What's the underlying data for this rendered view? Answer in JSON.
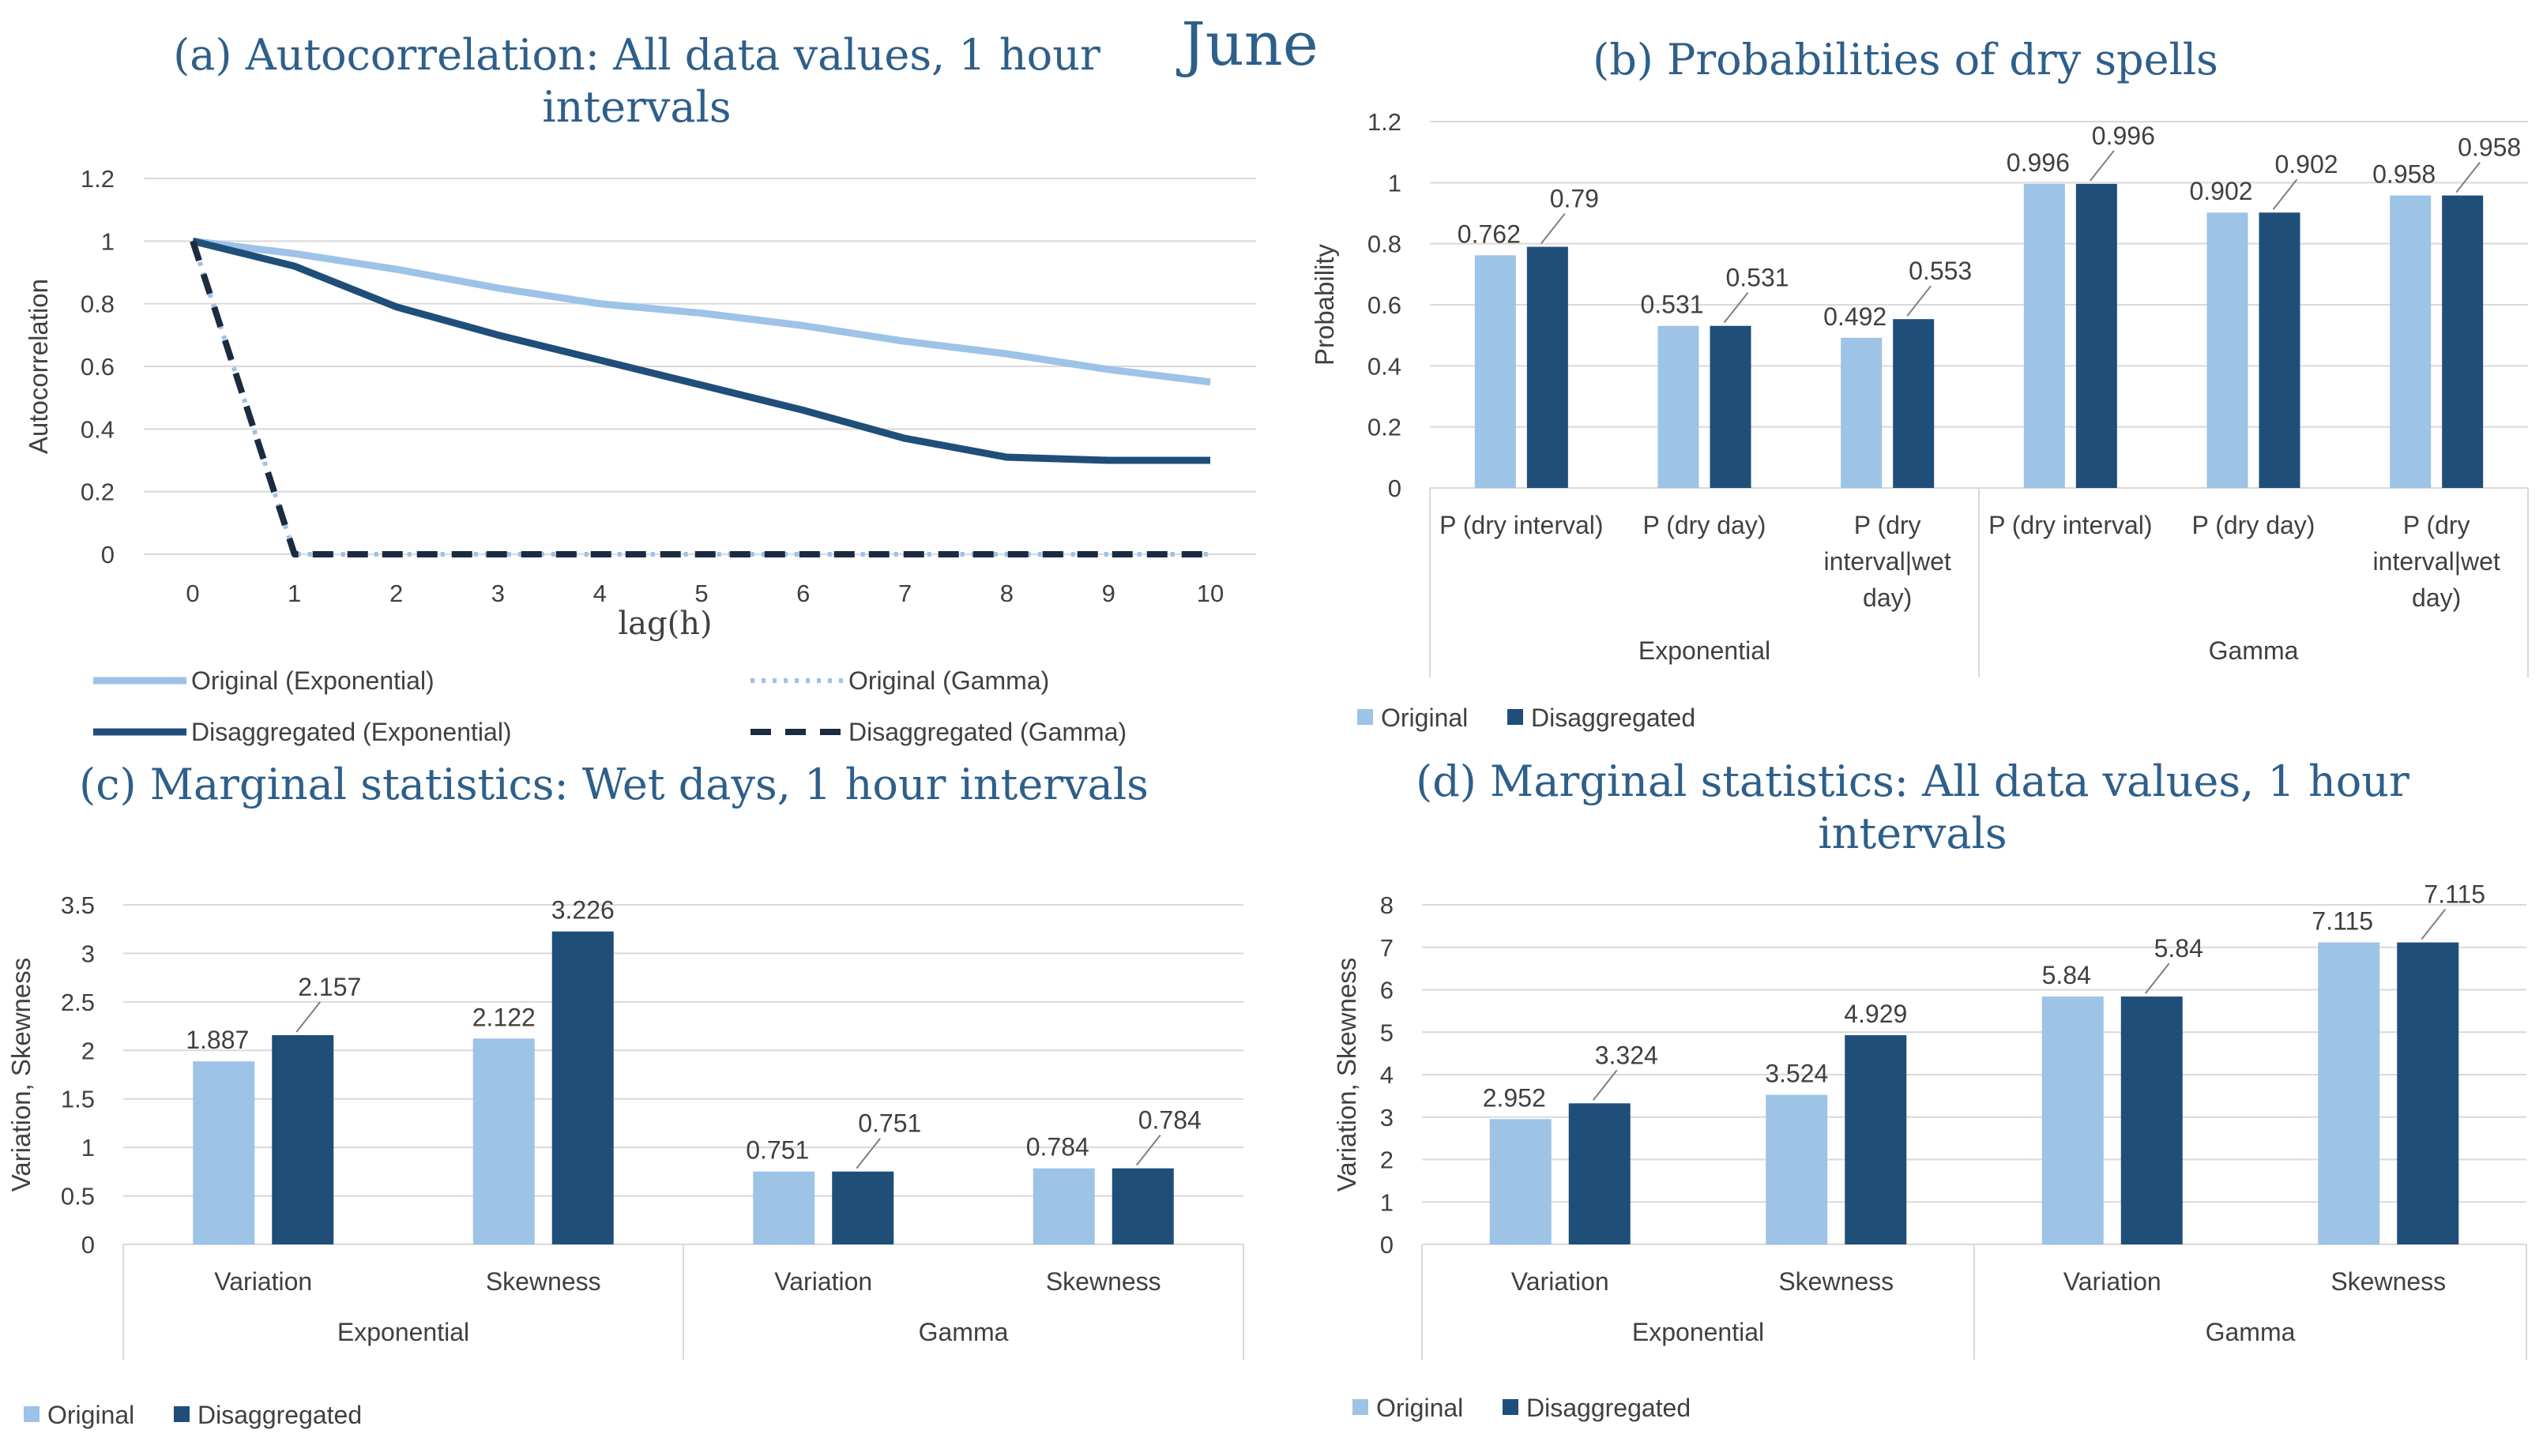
{
  "page_title": "June",
  "colors": {
    "title": "#2e5f8a",
    "text": "#404040",
    "grid": "#d9d9d9",
    "light": "#9dc3e6",
    "dark": "#1f4e79",
    "navy": "#1c2b40"
  },
  "chart_data": [
    {
      "id": "a",
      "type": "line",
      "title": "(a) Autocorrelation: All data values, 1 hour intervals",
      "title_lines": [
        "(a) Autocorrelation: All data values, 1 hour",
        "intervals"
      ],
      "xlabel": "lag(h)",
      "ylabel": "Autocorrelation",
      "x": [
        0,
        1,
        2,
        3,
        4,
        5,
        6,
        7,
        8,
        9,
        10
      ],
      "xticks": [
        "0",
        "1",
        "2",
        "3",
        "4",
        "5",
        "6",
        "7",
        "8",
        "9",
        "10"
      ],
      "ylim": [
        0,
        1.2
      ],
      "yticks": [
        "0",
        "0.2",
        "0.4",
        "0.6",
        "0.8",
        "1",
        "1.2"
      ],
      "grid": true,
      "series": [
        {
          "name": "Original (Exponential)",
          "style": "solid-light",
          "values": [
            1,
            0.96,
            0.91,
            0.85,
            0.8,
            0.77,
            0.73,
            0.68,
            0.64,
            0.59,
            0.55
          ]
        },
        {
          "name": "Original (Gamma)",
          "style": "dotted-light",
          "values": [
            1,
            0,
            0,
            0,
            0,
            0,
            0,
            0,
            0,
            0,
            0
          ]
        },
        {
          "name": "Disaggregated (Exponential)",
          "style": "solid-dark",
          "values": [
            1,
            0.92,
            0.79,
            0.7,
            0.62,
            0.54,
            0.46,
            0.37,
            0.31,
            0.3,
            0.3
          ]
        },
        {
          "name": "Disaggregated (Gamma)",
          "style": "dashed-navy",
          "values": [
            1,
            0,
            0,
            0,
            0,
            0,
            0,
            0,
            0,
            0,
            0
          ]
        }
      ],
      "legend": "bottom"
    },
    {
      "id": "b",
      "type": "bar",
      "title": "(b) Probabilities of dry spells",
      "title_lines": [
        "(b) Probabilities of dry spells"
      ],
      "ylabel": "Probability",
      "ylim": [
        0,
        1.2
      ],
      "yticks": [
        "0",
        "0.2",
        "0.4",
        "0.6",
        "0.8",
        "1",
        "1.2"
      ],
      "categories": [
        [
          "P (dry interval)"
        ],
        [
          "P (dry day)"
        ],
        [
          "P (dry",
          "interval|wet",
          "day)"
        ],
        [
          "P (dry interval)"
        ],
        [
          "P (dry day)"
        ],
        [
          "P (dry",
          "interval|wet",
          "day)"
        ]
      ],
      "groups": [
        "Exponential",
        "Gamma"
      ],
      "series": [
        {
          "name": "Original",
          "values": [
            0.762,
            0.531,
            0.492,
            0.996,
            0.902,
            0.958
          ],
          "labels": [
            "0.762",
            "0.531",
            "0.492",
            "0.996",
            "0.902",
            "0.958"
          ]
        },
        {
          "name": "Disaggregated",
          "values": [
            0.79,
            0.531,
            0.553,
            0.996,
            0.902,
            0.958
          ],
          "labels": [
            "0.79",
            "0.531",
            "0.553",
            "0.996",
            "0.902",
            "0.958"
          ]
        }
      ],
      "legend": "bottom-left"
    },
    {
      "id": "c",
      "type": "bar",
      "title": "(c) Marginal statistics: Wet days, 1 hour intervals",
      "title_lines": [
        "(c) Marginal statistics: Wet days, 1 hour intervals"
      ],
      "ylabel": "Variation, Skewness",
      "ylim": [
        0,
        3.5
      ],
      "yticks": [
        "0",
        "0.5",
        "1",
        "1.5",
        "2",
        "2.5",
        "3",
        "3.5"
      ],
      "categories": [
        [
          "Variation"
        ],
        [
          "Skewness"
        ],
        [
          "Variation"
        ],
        [
          "Skewness"
        ]
      ],
      "groups": [
        "Exponential",
        "Gamma"
      ],
      "series": [
        {
          "name": "Original",
          "values": [
            1.887,
            2.122,
            0.751,
            0.784
          ],
          "labels": [
            "1.887",
            "2.122",
            "0.751",
            "0.784"
          ]
        },
        {
          "name": "Disaggregated",
          "values": [
            2.157,
            3.226,
            0.751,
            0.784
          ],
          "labels": [
            "2.157",
            "3.226",
            "0.751",
            "0.784"
          ]
        }
      ],
      "legend": "bottom-left"
    },
    {
      "id": "d",
      "type": "bar",
      "title": "(d) Marginal statistics: All data values, 1 hour intervals",
      "title_lines": [
        "(d) Marginal statistics: All data values, 1 hour",
        "intervals"
      ],
      "ylabel": "Variation, Skewness",
      "ylim": [
        0,
        8
      ],
      "yticks": [
        "0",
        "1",
        "2",
        "3",
        "4",
        "5",
        "6",
        "7",
        "8"
      ],
      "categories": [
        [
          "Variation"
        ],
        [
          "Skewness"
        ],
        [
          "Variation"
        ],
        [
          "Skewness"
        ]
      ],
      "groups": [
        "Exponential",
        "Gamma"
      ],
      "series": [
        {
          "name": "Original",
          "values": [
            2.952,
            3.524,
            5.84,
            7.115
          ],
          "labels": [
            "2.952",
            "3.524",
            "5.84",
            "7.115"
          ]
        },
        {
          "name": "Disaggregated",
          "values": [
            3.324,
            4.929,
            5.84,
            7.115
          ],
          "labels": [
            "3.324",
            "4.929",
            "5.84",
            "7.115"
          ]
        }
      ],
      "legend": "bottom-left"
    }
  ]
}
